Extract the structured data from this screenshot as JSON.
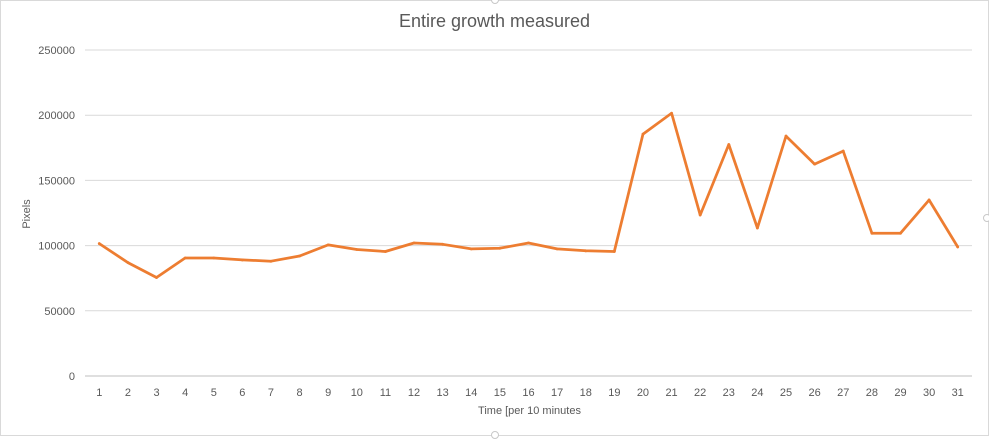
{
  "chart_data": {
    "type": "line",
    "title": "Entire growth measured",
    "xlabel": "Time [per 10 minutes",
    "ylabel": "Pixels",
    "categories": [
      "1",
      "2",
      "3",
      "4",
      "5",
      "6",
      "7",
      "8",
      "9",
      "10",
      "11",
      "12",
      "13",
      "14",
      "15",
      "16",
      "17",
      "18",
      "19",
      "20",
      "21",
      "22",
      "23",
      "24",
      "25",
      "26",
      "27",
      "28",
      "29",
      "30",
      "31"
    ],
    "series": [
      {
        "values": [
          101500,
          87000,
          75500,
          90500,
          90500,
          89000,
          88000,
          92000,
          100500,
          97000,
          95500,
          102000,
          101000,
          97500,
          98000,
          102000,
          97500,
          96000,
          95500,
          185500,
          201500,
          123500,
          177500,
          113500,
          184000,
          162500,
          172500,
          109500,
          109500,
          135000,
          99000
        ],
        "color": "#ed7d31"
      }
    ],
    "ylim": [
      0,
      250000
    ],
    "yticks": [
      0,
      50000,
      100000,
      150000,
      200000,
      250000
    ],
    "grid": true,
    "legend": "none"
  }
}
